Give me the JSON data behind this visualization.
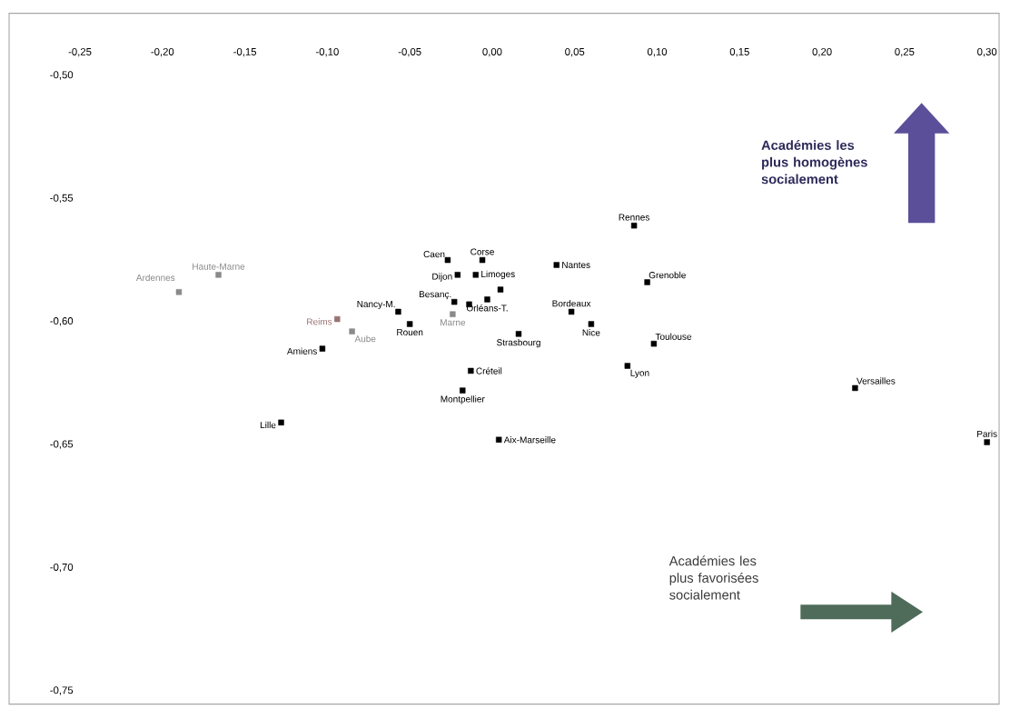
{
  "chart_data": {
    "type": "scatter",
    "marker": "square",
    "xlim": [
      -0.25,
      0.3
    ],
    "ylim": [
      -0.75,
      -0.5
    ],
    "xticks": [
      {
        "value": -0.25,
        "label": "-0,25"
      },
      {
        "value": -0.2,
        "label": "-0,20"
      },
      {
        "value": -0.15,
        "label": "-0,15"
      },
      {
        "value": -0.1,
        "label": "-0,10"
      },
      {
        "value": -0.05,
        "label": "-0,05"
      },
      {
        "value": 0,
        "label": "0,00"
      },
      {
        "value": 0.05,
        "label": "0,05"
      },
      {
        "value": 0.1,
        "label": "0,10"
      },
      {
        "value": 0.15,
        "label": "0,15"
      },
      {
        "value": 0.2,
        "label": "0,20"
      },
      {
        "value": 0.25,
        "label": "0,25"
      },
      {
        "value": 0.3,
        "label": "0,30"
      }
    ],
    "yticks": [
      {
        "value": -0.5,
        "label": "-0,50"
      },
      {
        "value": -0.55,
        "label": "-0,55"
      },
      {
        "value": -0.6,
        "label": "-0,60"
      },
      {
        "value": -0.65,
        "label": "-0,65"
      },
      {
        "value": -0.7,
        "label": "-0,70"
      },
      {
        "value": -0.75,
        "label": "-0,75"
      }
    ],
    "series": [
      {
        "color": "#000000",
        "x": [
          -0.103,
          -0.128,
          -0.057,
          -0.05,
          -0.027,
          -0.006,
          -0.021,
          -0.01,
          0.005,
          -0.023,
          -0.014,
          -0.003,
          0.016,
          -0.013,
          -0.018,
          0.004,
          0.039,
          0.048,
          0.06,
          0.086,
          0.094,
          0.098,
          0.082,
          0.22,
          0.3
        ],
        "values": [
          -0.611,
          -0.641,
          -0.596,
          -0.601,
          -0.575,
          -0.575,
          -0.581,
          -0.581,
          -0.587,
          -0.592,
          -0.593,
          -0.591,
          -0.605,
          -0.62,
          -0.628,
          -0.648,
          -0.577,
          -0.596,
          -0.601,
          -0.561,
          -0.584,
          -0.609,
          -0.618,
          -0.627,
          -0.649
        ],
        "value_labels": [
          "Amiens",
          "Lille",
          "Nancy-M.",
          "Rouen",
          "Caen",
          "Corse",
          "Dijon",
          "Limoges",
          null,
          "Besanç.",
          null,
          "Orléans-T.",
          "Strasbourg",
          "Créteil",
          "Montpellier",
          "Aix-Marseille",
          "Nantes",
          "Bordeaux",
          "Nice",
          "Rennes",
          "Grenoble",
          "Toulouse",
          "Lyon",
          "Versailles",
          "Paris"
        ]
      },
      {
        "color": "#8a8a8a",
        "x": [
          -0.19,
          -0.166,
          -0.085,
          -0.024
        ],
        "values": [
          -0.588,
          -0.581,
          -0.604,
          -0.597
        ],
        "value_labels": [
          "Ardennes",
          "Haute-Marne",
          "Aube",
          "Marne"
        ]
      },
      {
        "color": "#9a7272",
        "x": [
          -0.094
        ],
        "values": [
          -0.599
        ],
        "value_labels": [
          "Reims"
        ]
      }
    ],
    "annotations": [
      "Académies les plus homogènes socialement",
      "Académies les plus favorisées socialement"
    ]
  }
}
